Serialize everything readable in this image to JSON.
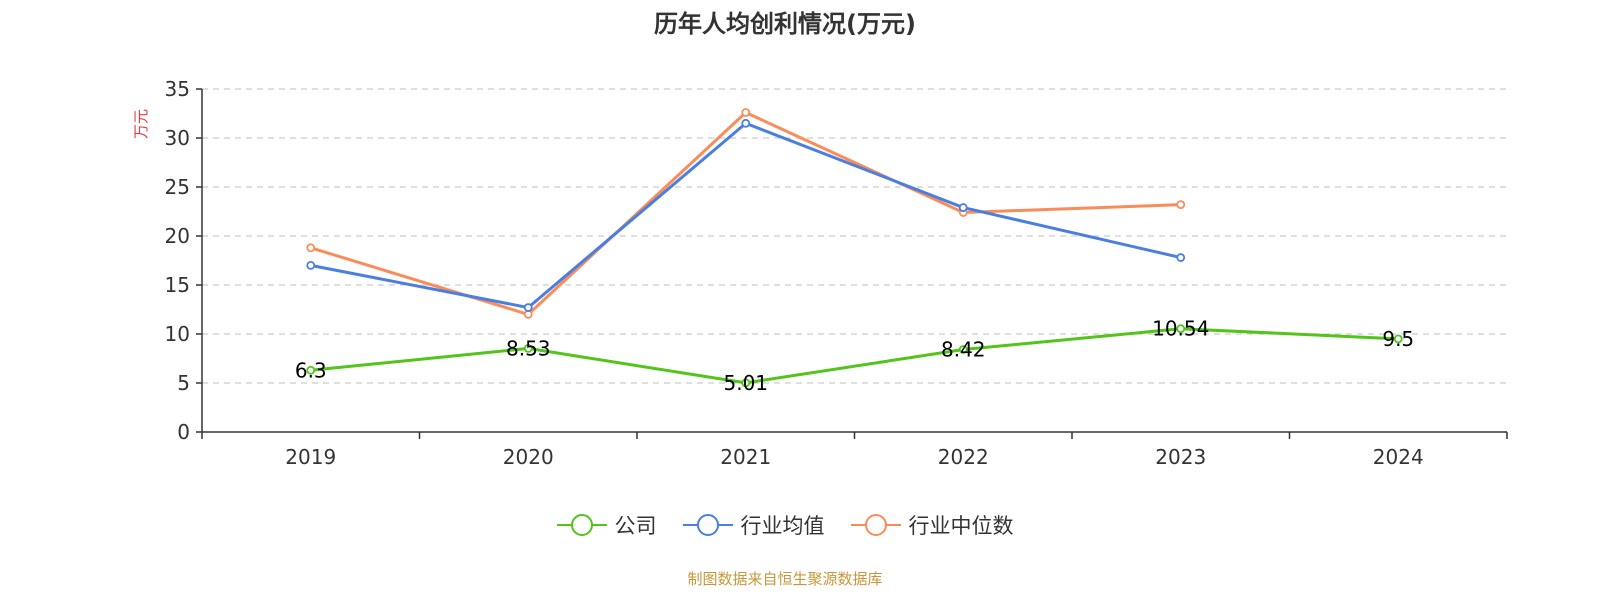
{
  "chart_data": {
    "type": "line",
    "title": "历年人均创利情况(万元)",
    "ylabel": "万元",
    "xlabel": "",
    "categories": [
      "2019",
      "2020",
      "2021",
      "2022",
      "2023",
      "2024"
    ],
    "ylim": [
      0,
      35
    ],
    "yticks": [
      0,
      5,
      10,
      15,
      20,
      25,
      30,
      35
    ],
    "grid": true,
    "legend_position": "bottom-center",
    "series": [
      {
        "name": "公司",
        "color": "#52c41a",
        "values": [
          6.3,
          8.53,
          5.01,
          8.42,
          10.54,
          9.5
        ],
        "show_labels": true
      },
      {
        "name": "行业均值",
        "color": "#4a7fe0",
        "values": [
          17.0,
          12.7,
          31.5,
          22.9,
          17.8,
          null
        ],
        "show_labels": false
      },
      {
        "name": "行业中位数",
        "color": "#fa8c5a",
        "values": [
          18.8,
          12.0,
          32.6,
          22.4,
          23.2,
          null
        ],
        "show_labels": false
      }
    ]
  },
  "source_note": "制图数据来自恒生聚源数据库",
  "colors": {
    "axis": "#333333",
    "grid": "#cccccc",
    "y_unit": "#e8393a",
    "source_note": "#c8973a"
  }
}
